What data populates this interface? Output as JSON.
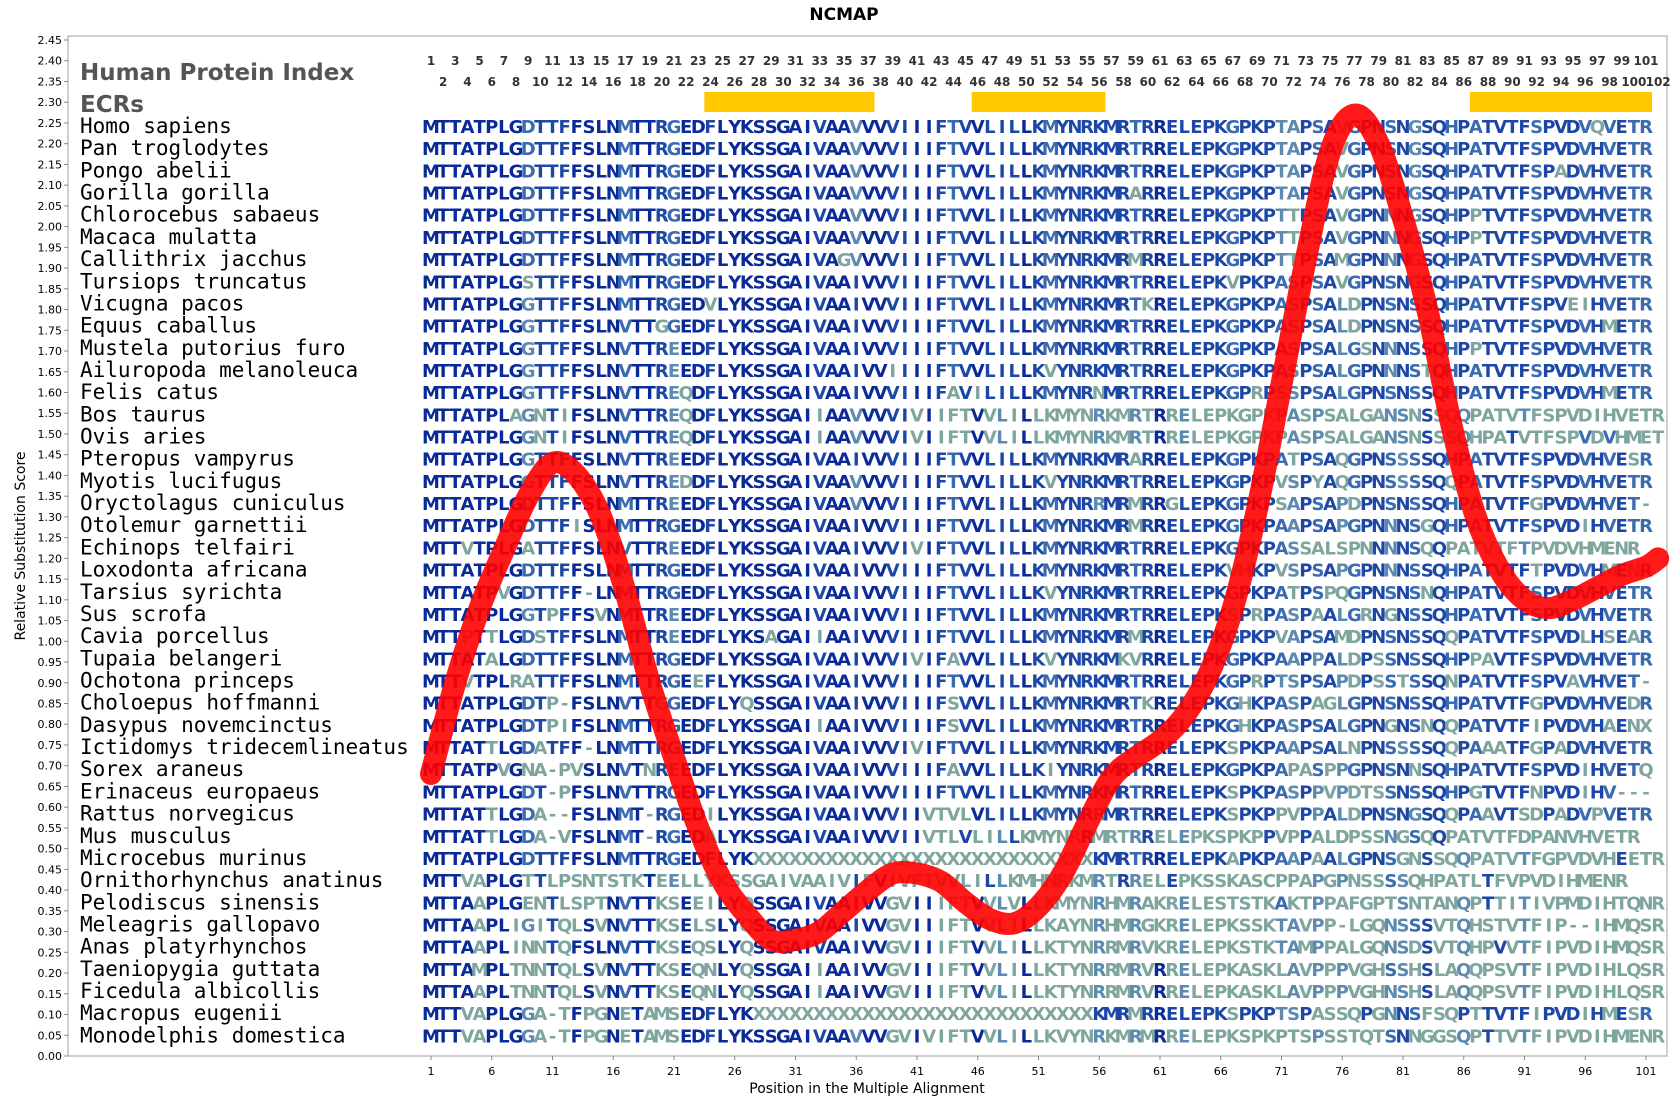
{
  "chart_data": {
    "type": "line",
    "title": "NCMAP",
    "xlabel": "Position in the Multiple Alignment",
    "ylabel": "Relative Substitution Score",
    "ylim": [
      0,
      2.45
    ],
    "xlim": [
      1,
      102
    ],
    "y_ticks": [
      "0.00",
      "0.05",
      "0.10",
      "0.15",
      "0.20",
      "0.25",
      "0.30",
      "0.35",
      "0.40",
      "0.45",
      "0.50",
      "0.55",
      "0.60",
      "0.65",
      "0.70",
      "0.75",
      "0.80",
      "0.85",
      "0.90",
      "0.95",
      "1.00",
      "1.05",
      "1.10",
      "1.15",
      "1.20",
      "1.25",
      "1.30",
      "1.35",
      "1.40",
      "1.45",
      "1.50",
      "1.55",
      "1.60",
      "1.65",
      "1.70",
      "1.75",
      "1.80",
      "1.85",
      "1.90",
      "1.95",
      "2.00",
      "2.05",
      "2.10",
      "2.15",
      "2.20",
      "2.25",
      "2.30",
      "2.35",
      "2.40",
      "2.45"
    ],
    "x_ticks": [
      "1",
      "6",
      "11",
      "16",
      "21",
      "26",
      "31",
      "36",
      "41",
      "46",
      "51",
      "56",
      "61",
      "66",
      "71",
      "76",
      "81",
      "86",
      "91",
      "96",
      "101"
    ],
    "legend_label": "Human Protein Index",
    "ecr_label": "ECRs",
    "ecrs": [
      [
        24,
        37
      ],
      [
        46,
        56
      ],
      [
        87,
        101
      ]
    ],
    "curve_color": "#ff0000",
    "ecr_color": "#ffc800",
    "score_curve": {
      "x": [
        1,
        3,
        5,
        7,
        9,
        11,
        13,
        15,
        17,
        19,
        21,
        23,
        25,
        27,
        29,
        31,
        33,
        35,
        37,
        39,
        41,
        43,
        45,
        47,
        49,
        51,
        53,
        55,
        57,
        59,
        61,
        63,
        65,
        67,
        69,
        71,
        73,
        75,
        77,
        79,
        81,
        83,
        85,
        87,
        89,
        91,
        93,
        95,
        97,
        99,
        101,
        102
      ],
      "y": [
        0.68,
        0.9,
        1.08,
        1.22,
        1.35,
        1.43,
        1.4,
        1.3,
        1.12,
        0.9,
        0.72,
        0.55,
        0.42,
        0.34,
        0.28,
        0.28,
        0.3,
        0.35,
        0.4,
        0.44,
        0.44,
        0.42,
        0.37,
        0.33,
        0.32,
        0.36,
        0.44,
        0.56,
        0.67,
        0.72,
        0.76,
        0.82,
        0.92,
        1.08,
        1.32,
        1.62,
        1.92,
        2.18,
        2.27,
        2.2,
        2.02,
        1.8,
        1.52,
        1.3,
        1.17,
        1.1,
        1.08,
        1.1,
        1.13,
        1.16,
        1.18,
        1.2
      ]
    },
    "alignment": {
      "species": [
        "Homo sapiens",
        "Pan troglodytes",
        "Pongo abelii",
        "Gorilla gorilla",
        "Chlorocebus sabaeus",
        "Macaca mulatta",
        "Callithrix jacchus",
        "Tursiops truncatus",
        "Vicugna pacos",
        "Equus caballus",
        "Mustela putorius furo",
        "Ailuropoda melanoleuca",
        "Felis catus",
        "Bos taurus",
        "Ovis aries",
        "Pteropus vampyrus",
        "Myotis lucifugus",
        "Oryctolagus cuniculus",
        "Otolemur garnettii",
        "Echinops telfairi",
        "Loxodonta africana",
        "Tarsius syrichta",
        "Sus scrofa",
        "Cavia porcellus",
        "Tupaia belangeri",
        "Ochotona princeps",
        "Choloepus hoffmanni",
        "Dasypus novemcinctus",
        "Ictidomys tridecemlineatus",
        "Sorex araneus",
        "Erinaceus europaeus",
        "Rattus norvegicus",
        "Mus musculus",
        "Microcebus murinus",
        "Ornithorhynchus anatinus",
        "Pelodiscus sinensis",
        "Meleagris gallopavo",
        "Anas platyrhynchos",
        "Taeniopygia guttata",
        "Ficedula albicollis",
        "Macropus eugenii",
        "Monodelphis domestica"
      ],
      "sequences": [
        "MTTATPLGDTTFFSLNMTTRGEDFLYKSSGAIVAAVVVVIIIFTVVLILLKMYNRKMRTRRELEPKGPKPTAPSAVGPNSNGSQHPATVTFSPVDVQVETR",
        "MTTATPLGDTTFFSLNMTTRGEDFLYKSSGAIVAAVVVVIIIFTVVLILLKMYNRKMRTRRELEPKGPKPTAPSAVGPNSNGSQHPATVTFSPVDVHVETR",
        "MTTATPLGDTTFFSLNMTTRGEDFLYKSSGAIVAAVVVVIIIFTVVLILLKMYNRKMRTRRELEPKGPKPTAPSAVGPNSNGSQHPATVTFSPADVHVETR",
        "MTTATPLGDTTFFSLNMTTRGEDFLYKSSGAIVAAVVVVIIIFTVVLILLKMYNRKMRARRELEPKGPKPTAPSAVGPNSNGSQHPATVTFSPVDVHVETR",
        "MTTATPLGDTTFFSLNMTTRGEDFLYKSSGAIVAAVVVVIIIFTVVLILLKMYNRKMRTRRELEPKGPKPTTPSAVGPNNNGSQHPPTVTFSPVDVHVETR",
        "MTTATPLGDTTFFSLNMTTRGEDFLYKSSGAIVAAVVVVIIIFTVVLILLKMYNRKMRTRRELEPKGPKPTTPSAVGPNNNGSQHPPTVTFSPVDVHVETR",
        "MTTATPLGDTTFFSLNMTTRGEDFLYKSSGAIVAGVVVVIIIFTVVLILLKMYNRKMRMRRELEPKGPKPTTPSAMGPNNNGSQHPATVTFSPVDVHVETR",
        "MTTATPLGSTTFFSLNMTTRGEDFLYKSSGAIVAAIVVVIIIFTVVLILLKMYNRKMRTRRELEPKVPKPASPSAVGPNSNGSQHPATVTFSPVDVHVETR",
        "MTTATPLGGTTFFSLNMTTRGEDVLYKSSGAIVAAIVVVIIIFTVVLILLKMYNRKMRTKRELEPKGPKPASPSALDPNSNSSQHPATVTFSPVEIHVETR",
        "MTTATPLGGTTFFSLNVTTGGEDFLYKSSGAIVAAIVVVIIIFTVVLILLKMYNRKMRTRRELEPKGPKPASPSALDPNSNSSQHPATVTFSPVDVHMETR",
        "MTTATPLGGTTFFSLNVTTREEDFLYKSSGAIVAAIVVVIIIFTVVLILLKMYNRKMRTRRELEPKGPKPASPSALGSNNNSSQHPPTVTFSPVDVHVETR",
        "MTTATPLGGTTFFSLNVTTREEDFLYKSSGAIVAAIVVIIIIFTVVLILLKVYNRKMRTRRELEPKGPKPASPSALGPNNNSTQHPATVTFSPVDVHVETR",
        "MTTATPLGGTTFFSLNVTTREQDFLYKSSGAIVAAIVVVIIIFAVILILLKMYNRNMRTRRELEPKGPRPSSPSALGPNSNSSQHPATVTFSPVDVHMETR",
        "MTTATPLAGNTIFSLNVTTREQDFLYKSSGAIIAAVVVVIVIIFTVVLILLKMYNRKMRTRRELEPKGPKPASPSALGANSNSSQQPATVTFSPVDIHVETR",
        "MTTATPLGGNTIFSLNVTTREQDFLYKSSGAIIAAVVVVIVIIFTVVLILLKMYNRKMRTRRELEPKGPKPASPSALGANSNSSSQHPATVTFSPVDVHMETR",
        "MTTATPLGGTTFFSLNVTTREEDFLYKSSGAIVAAIVVVIIIFTVVLILLKMYNRKMRARRELEPKGPKPATPSAQGPNSSSSQHPATVTFSPVDVHVESR",
        "MTTATPLGGTTFFSLNVTTREDDFLYKSSGAIVAAVVVVIIIFTVVLILLKVYNRKMRTRRELEPKGPKPVSPYAQGPNSSSSQQPATVTFSPVDVHVETR",
        "MTTATPLGDTTFFSLNMTTREEDFLYKSSGAIVAAVVVVIIIFTVVLILLKMYNRRMRMRRGLEPKGPKPSAPSAPDPNSNSSQHPATVTFGPVDVHVET-",
        "MTTATPLGDTTFISLNMTTRGEDFLYKSSGAIVAAIVVVIIIFTVVLILLKMYNRKMRMRRELEPKGPKPAAPSAPGPNNNSGQHPATVTFSPVDIHVETR",
        "MTTVTPLGATTFFSLNVTTREEDFLYKSSGAIVAAIVVVIVIFTVVLILLKMYNRKMRTRRELEPKGPKPASSALSPNNNNSQQPATVTFTPVDVHMENR",
        "MTTATPLGDTTFFSLNMTTRGEDFLYKSSGAIVAAIVVVIIIFTVVLILLKMYNRKMRTRRELEPKVHKPVSPSAPGPNNNSSQHPATVTFTPVDVHMENR",
        "MTTATPVGDTTFF-LNMTTRGEDFLYKSSGAIVAAIVVVIIIFTVVLILLKVYNRKMRTRRELEPKGPKPATPSPQGPNSNSNQHPATVTFSPVDVHVETR",
        "MTTATPLGGTPFFSVNMTTREEDFLYKSSGAIVAAIVVVIIIFTVVLILLKMYNRKMRTRRELEPKSPRPASPAALGRNGNSSQHPATVTFSPVDVHVETR",
        "MTTPTTLGDSTFFSLNMTTREEDFLYKSAGAIIAAIVVVIIIFTVVLILLKMYNRKMRMRRELEPKGPKPVAPSAMDPNSNSSQQPATVTFSPVDLHSEAR",
        "MTTATALGDTTFFSLNMTTRGEDFLYKSSGAIVAAIVVVIVIFAVVLILLKVYNRKMKVRRELEPKGPKPAAPPALDPSSNSSQHPPAVTFSPVDVHVETR",
        "MTTVTPLRATTFFSLNMTTRGEEFLYKSSGAIVAAIVVVIIIFTVVLILLKMYNRKMRTRRELEPKGPRPTSPSAPDPSSTSSQNPATVTFSPVAVHVET-",
        "MTTATPLGDTP-FSLNVTTGGEDFLYQSSGAIVAAIVVVIIIFSVVLILLKMYNRKMRTKRELEPKGHKPASPAGLGPNSNSSQHPATVTFGPVDVHVEDR",
        "MTTATPLGDTPIFSLNMTTRGEDFLYKSSGAIIAAIVVVIIIFSVVLILLKMYNRKMRTRRELEPKGHKPASPSALGPNGNSNQQPATVTFIPVDVHAENX",
        "MTTATTLGDATFF-LNMTTRGEDFLYKSSGAIVAAIVVVIVIFTVVLILLKMYNRKMRTRRELEPKSPKPAAPSALNPNSSSSQQPAAATFGPADVHVETR",
        "MTTATPVGNA-PVSLNVTNREEDFLYKSSGAIVAAIVVVIIIFAVVLILLKIYNRKMRTRRELEPKGPKPAPASPPGPNSNNSQHPATVTFSPVDIHVETQ",
        "MTTATPLGDT-PFSLNVTTRGEDFLYKSSGAIVAAIVVVIIIFTVVLILLKMYNRKMRTRRELEPKSPKPASPPVPDTSSNSSQHPGTVTFNPVDIHV---",
        "MTTATTLGDA--FSLNMT-RGEDILYKSSGAIVAAIVVVIIVTVLVLILLKMYNRRMRTRRELEPKSPKPPVPPALDPNSNGSQQPAAVTSDPADVPVETR",
        "MTTATTLGDA-VFSLNMT-RGEDALYKSSGAIVAAIVVVIIVTLVLILLKMYNRRMRTRRELEPKSPKPPVPPALDPSSNGSQQPATVTFDPANVHVETR",
        "MTTATPLGDTTFFSLNMTTRGEDFLYKXXXXXXXXXXXXXXXXXXXXXXXXXXXXKMRTRRELEPKAPKPAAPAALGPNSGNSSQQPATVTFGPVDVHEETR",
        "MTTVAPLGTTLPSNTSTKTEELLYKSSGAIVAAIVIFVIVFTVVLILLKMHNRKMRTRRELEPKSSKASCPPAPGPNSSSSQHPATLTFVPVDIHMENR",
        "MTTAAPLGENTLSPTNVTTKSEEILYQSSGAIVAAIVVGVIIIFTVVLVLLKMYNRHMRAKRELESTSTKAKTPPAFGPTSNTANQPTTITIVPMDIHTQNR",
        "MTTAAPLIGITQLSVNVTTKSELSLYQSSGAIVAAIVVGVIIIFTVVLILLKAYNRHMRGKRELEPKSSKTAVPP-LGQNSSSVTQHSTVTFIP--IHMQSR",
        "MTTAAPLINNTQFSLNVTTKSEQSLYQSSGAIVAAIVVGVIIIFTVVLILLKTYNRRMRVKRELEPKSTKTAMPPALGQNSDSVTQHPVVTFIPVDIHMQSR",
        "MTTAMPLTNNTQLSVNVTTKSEQNLYQSSGAIIAAIVVGVIIIFTVVLILLKTYNRRMRVRRELEPKASKLAVPPPVGHSSHSLAQQPSVTFIPVDIHLQSR",
        "MTTAAPLTNNTQLSVNVTTKSEQNLYQSSGAIIAAIVVGVIIIFTVVLILLKTYNRRMRVRRELEPKASKLAVPPPVGHNSHSLAQQPSVTFIPVDIHLQSR",
        "MTTVAPLGGA-TFPGNETAMSEDFLYKXXXXXXXXXXXXXXXXXXXXXXXXXXXXKMRMRRELEPKSPKPTSPASSQPGNNSFSQPTTVTFIPVDIHMESR",
        "MTTVAPLGGA-TFPGNETAMSEDFLYKSSGAIVAAVVVGVIVIFTVVLILLKVYNRKMRMRRELEPKSPKPTSPSSTQTSNNGGSQPTTVTFIPVDIHMENR"
      ]
    }
  }
}
